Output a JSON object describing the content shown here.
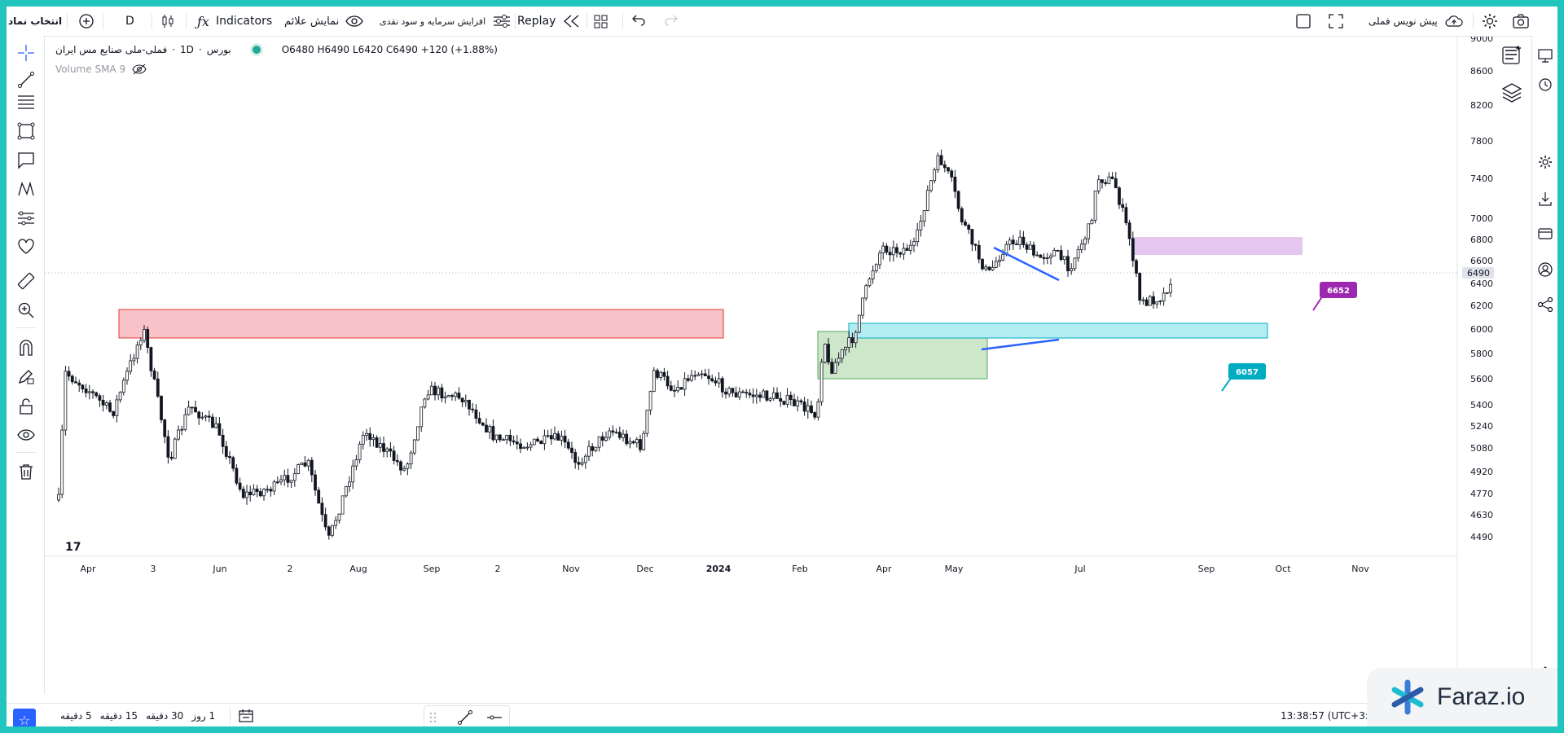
{
  "toolbar": {
    "symbol_select": "انتخاب نماد",
    "interval": "D",
    "indicators": "Indicators",
    "show_signals": "نمایش علائم",
    "capital_increase": "افزایش سرمایه و سود نقدی",
    "replay": "Replay",
    "prenote": "پیش نویس فملی"
  },
  "legend": {
    "symbol": "فملی-ملی صنایع مس ایران",
    "interval": "1D",
    "market": "بورس",
    "ohlc": "O6480 H6490 L6420 C6490 +120 (+1.88%)",
    "volume": "Volume SMA 9"
  },
  "chart_data": {
    "type": "candlestick",
    "price_scale": [
      "9000",
      "8600",
      "8200",
      "7800",
      "7400",
      "7000",
      "6800",
      "6600",
      "6400",
      "6200",
      "6000",
      "5800",
      "5600",
      "5400",
      "5240",
      "5080",
      "4920",
      "4770",
      "4630",
      "4490"
    ],
    "time_scale": [
      "Apr",
      "3",
      "Jun",
      "2",
      "Aug",
      "Sep",
      "2",
      "Nov",
      "Dec",
      "2024",
      "Feb",
      "Apr",
      "May",
      "Jul",
      "Sep",
      "Oct",
      "Nov"
    ],
    "last_price": "6490",
    "open": 6480,
    "high": 6490,
    "low": 6420,
    "close": 6490,
    "change": "+120 (+1.88%)",
    "annotations": [
      {
        "label": "6652",
        "color": "#9c27b0"
      },
      {
        "label": "6057",
        "color": "#00acc1"
      }
    ]
  },
  "bottom": {
    "ranges": [
      "1 روز",
      "30 دقیقه",
      "15 دقیقه",
      "5 دقیقه"
    ],
    "clock": "13:38:57 (UTC+3:3"
  },
  "brand": {
    "name": "Faraz.io"
  },
  "colors": {
    "frame": "#22c5bd",
    "accent": "#2962ff",
    "red_zone": "#f7c2c8",
    "green_zone": "#c7e5c4",
    "cyan_zone": "#b3ecf2",
    "purple_zone": "#e5c6ee"
  }
}
